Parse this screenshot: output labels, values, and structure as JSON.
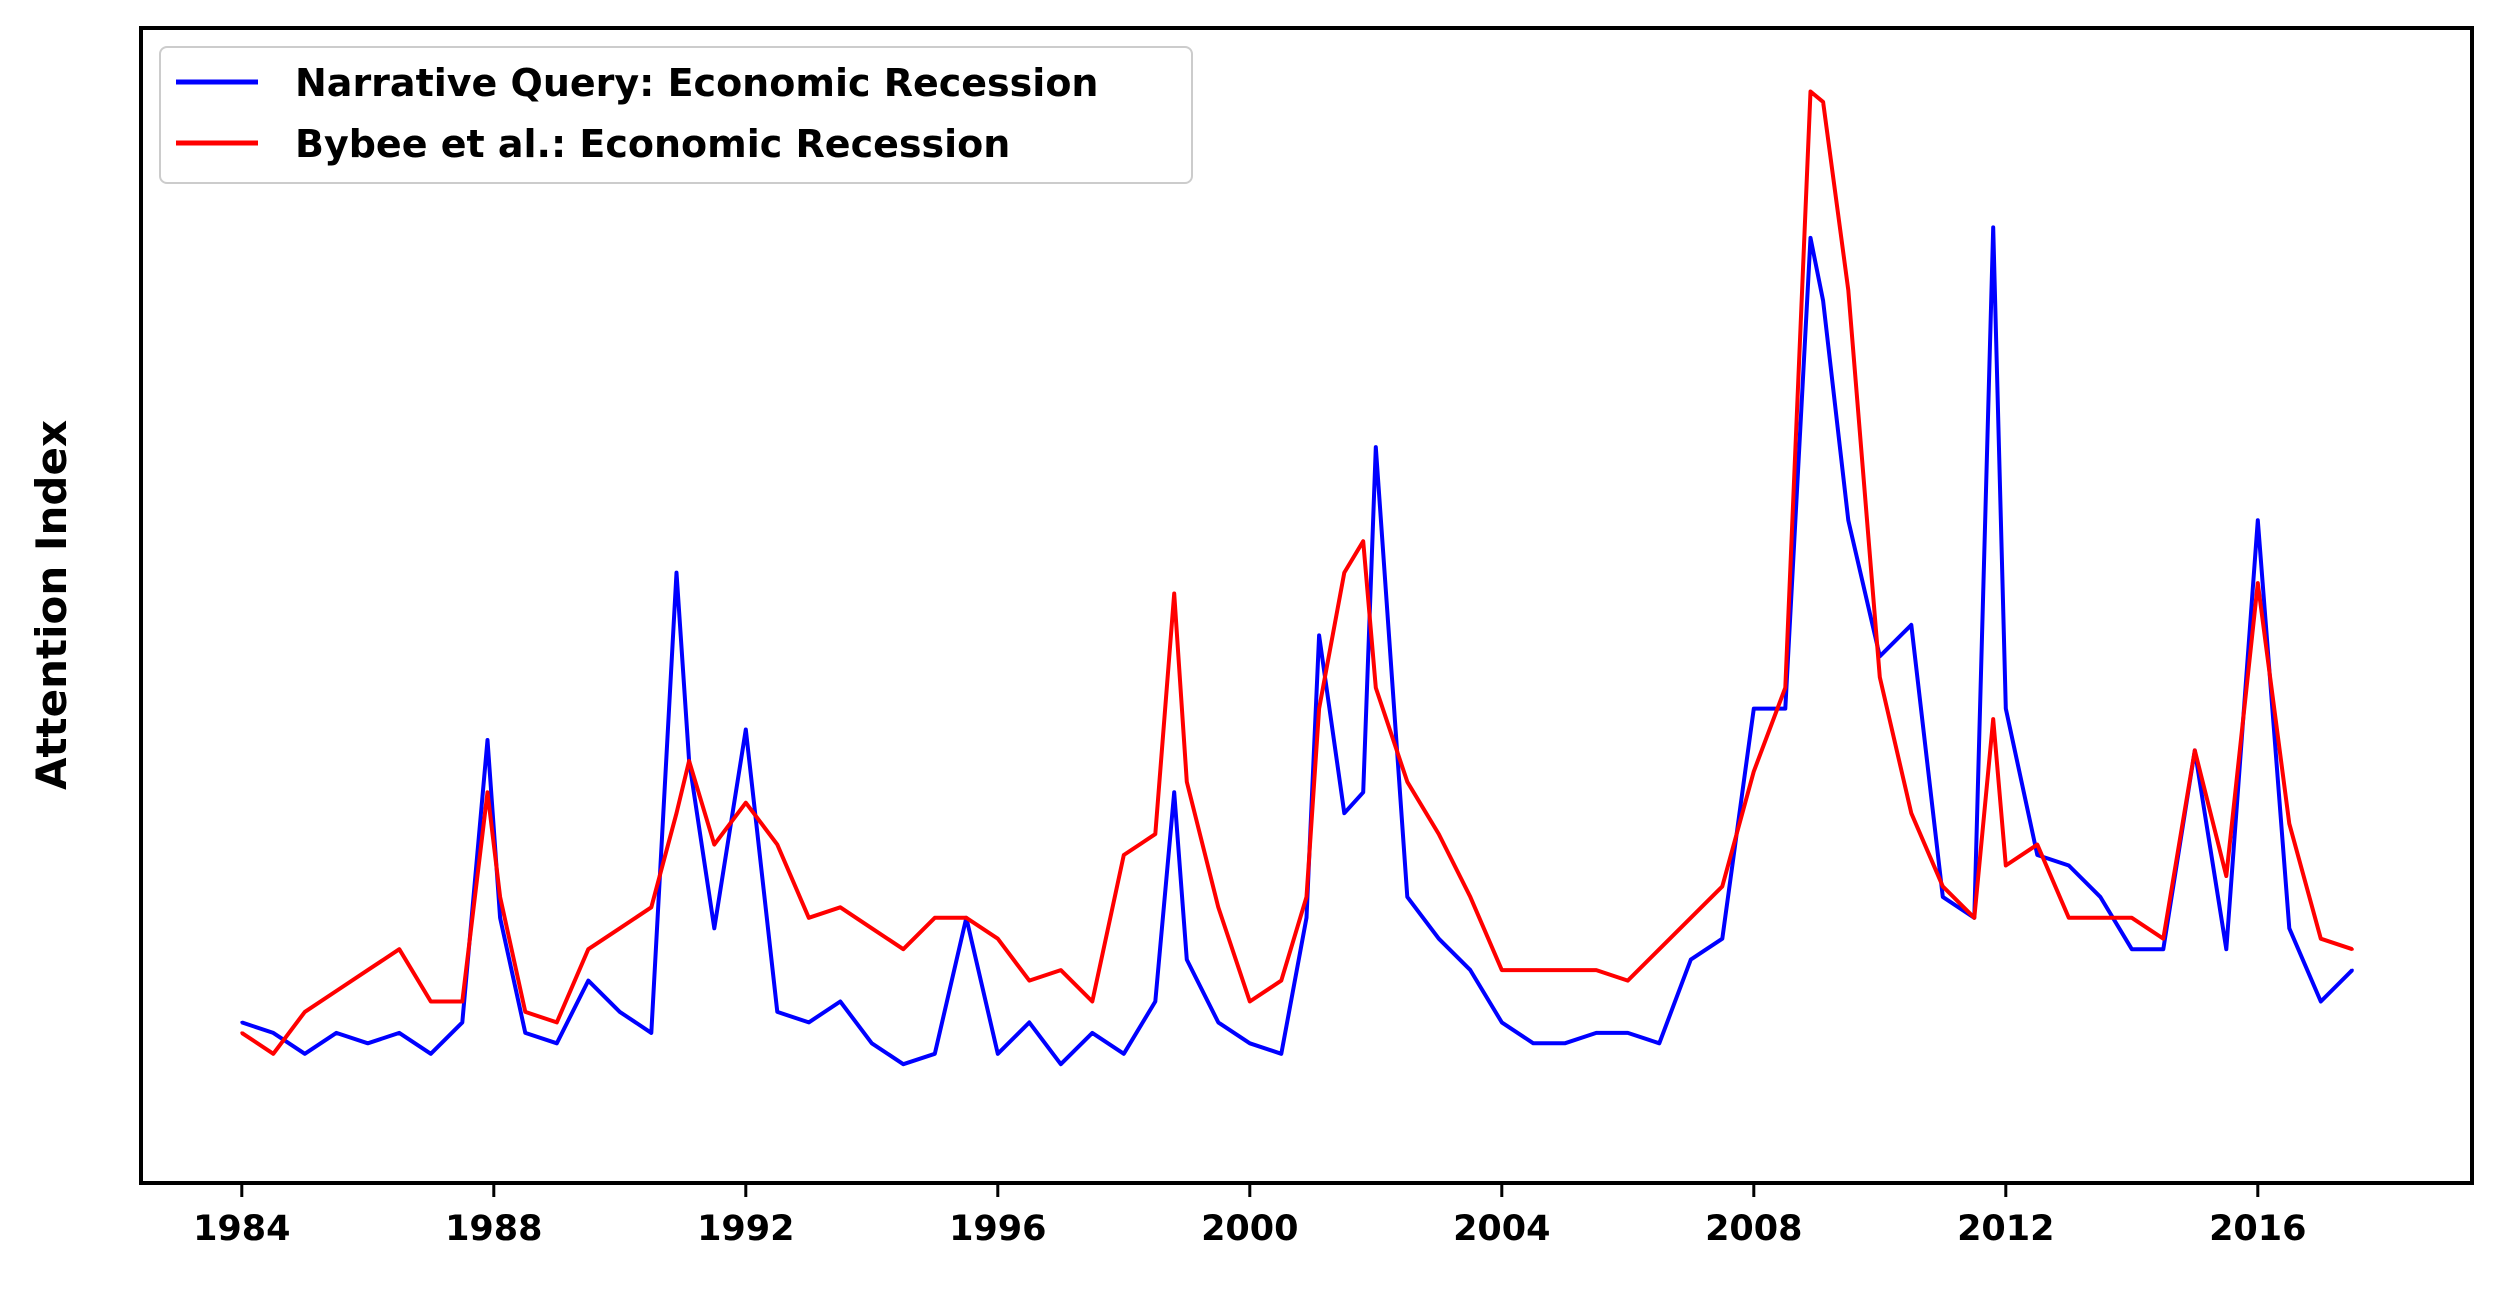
{
  "chart_data": {
    "type": "line",
    "title": "",
    "xlabel": "",
    "ylabel": "Attention Index",
    "xlim": [
      1982.4,
      2019.4
    ],
    "ylim": [
      0,
      1
    ],
    "y_ticks_shown": false,
    "grid": false,
    "legend_position": "top-left",
    "x_ticks": [
      "1984",
      "1988",
      "1992",
      "1996",
      "2000",
      "2004",
      "2008",
      "2012",
      "2016"
    ],
    "series": [
      {
        "name": "Narrative Query: Economic Recession",
        "color": "#0000ff",
        "x": [
          1984.0,
          1984.5,
          1985.0,
          1985.5,
          1986.0,
          1986.5,
          1987.0,
          1987.5,
          1987.9,
          1988.1,
          1988.5,
          1989.0,
          1989.5,
          1990.0,
          1990.5,
          1990.9,
          1991.1,
          1991.5,
          1992.0,
          1992.5,
          1993.0,
          1993.5,
          1994.0,
          1994.5,
          1995.0,
          1995.5,
          1996.0,
          1996.5,
          1997.0,
          1997.5,
          1998.0,
          1998.5,
          1998.8,
          1999.0,
          1999.5,
          2000.0,
          2000.5,
          2000.9,
          2001.1,
          2001.5,
          2001.8,
          2002.0,
          2002.5,
          2003.0,
          2003.5,
          2004.0,
          2004.5,
          2005.0,
          2005.5,
          2006.0,
          2006.5,
          2007.0,
          2007.5,
          2008.0,
          2008.5,
          2008.9,
          2009.1,
          2009.5,
          2010.0,
          2010.5,
          2011.0,
          2011.5,
          2011.8,
          2012.0,
          2012.5,
          2013.0,
          2013.5,
          2014.0,
          2014.5,
          2015.0,
          2015.5,
          2016.0,
          2016.5,
          2017.0,
          2017.5
        ],
        "values": [
          0.1,
          0.09,
          0.07,
          0.09,
          0.08,
          0.09,
          0.07,
          0.1,
          0.37,
          0.2,
          0.09,
          0.08,
          0.14,
          0.11,
          0.09,
          0.53,
          0.35,
          0.19,
          0.38,
          0.11,
          0.1,
          0.12,
          0.08,
          0.06,
          0.07,
          0.2,
          0.07,
          0.1,
          0.06,
          0.09,
          0.07,
          0.12,
          0.32,
          0.16,
          0.1,
          0.08,
          0.07,
          0.2,
          0.47,
          0.3,
          0.32,
          0.65,
          0.22,
          0.18,
          0.15,
          0.1,
          0.08,
          0.08,
          0.09,
          0.09,
          0.08,
          0.16,
          0.18,
          0.4,
          0.4,
          0.85,
          0.79,
          0.58,
          0.45,
          0.48,
          0.22,
          0.2,
          0.86,
          0.4,
          0.26,
          0.25,
          0.22,
          0.17,
          0.17,
          0.36,
          0.17,
          0.58,
          0.19,
          0.12,
          0.15
        ]
      },
      {
        "name": "Bybee et al.: Economic Recession",
        "color": "#ff0000",
        "x": [
          1984.0,
          1984.5,
          1985.0,
          1985.5,
          1986.0,
          1986.5,
          1987.0,
          1987.5,
          1987.9,
          1988.1,
          1988.5,
          1989.0,
          1989.5,
          1990.0,
          1990.5,
          1990.9,
          1991.1,
          1991.5,
          1992.0,
          1992.5,
          1993.0,
          1993.5,
          1994.0,
          1994.5,
          1995.0,
          1995.5,
          1996.0,
          1996.5,
          1997.0,
          1997.5,
          1998.0,
          1998.5,
          1998.8,
          1999.0,
          1999.5,
          2000.0,
          2000.5,
          2000.9,
          2001.1,
          2001.5,
          2001.8,
          2002.0,
          2002.5,
          2003.0,
          2003.5,
          2004.0,
          2004.5,
          2005.0,
          2005.5,
          2006.0,
          2006.5,
          2007.0,
          2007.5,
          2008.0,
          2008.5,
          2008.9,
          2009.1,
          2009.5,
          2010.0,
          2010.5,
          2011.0,
          2011.5,
          2011.8,
          2012.0,
          2012.5,
          2013.0,
          2013.5,
          2014.0,
          2014.5,
          2015.0,
          2015.5,
          2016.0,
          2016.5,
          2017.0,
          2017.5
        ],
        "values": [
          0.09,
          0.07,
          0.11,
          0.13,
          0.15,
          0.17,
          0.12,
          0.12,
          0.32,
          0.22,
          0.11,
          0.1,
          0.17,
          0.19,
          0.21,
          0.3,
          0.35,
          0.27,
          0.31,
          0.27,
          0.2,
          0.21,
          0.19,
          0.17,
          0.2,
          0.2,
          0.18,
          0.14,
          0.15,
          0.12,
          0.26,
          0.28,
          0.51,
          0.33,
          0.21,
          0.12,
          0.14,
          0.22,
          0.4,
          0.53,
          0.56,
          0.42,
          0.33,
          0.28,
          0.22,
          0.15,
          0.15,
          0.15,
          0.15,
          0.14,
          0.17,
          0.2,
          0.23,
          0.34,
          0.42,
          0.99,
          0.98,
          0.8,
          0.43,
          0.3,
          0.23,
          0.2,
          0.39,
          0.25,
          0.27,
          0.2,
          0.2,
          0.2,
          0.18,
          0.36,
          0.24,
          0.52,
          0.29,
          0.18,
          0.17
        ]
      }
    ]
  }
}
